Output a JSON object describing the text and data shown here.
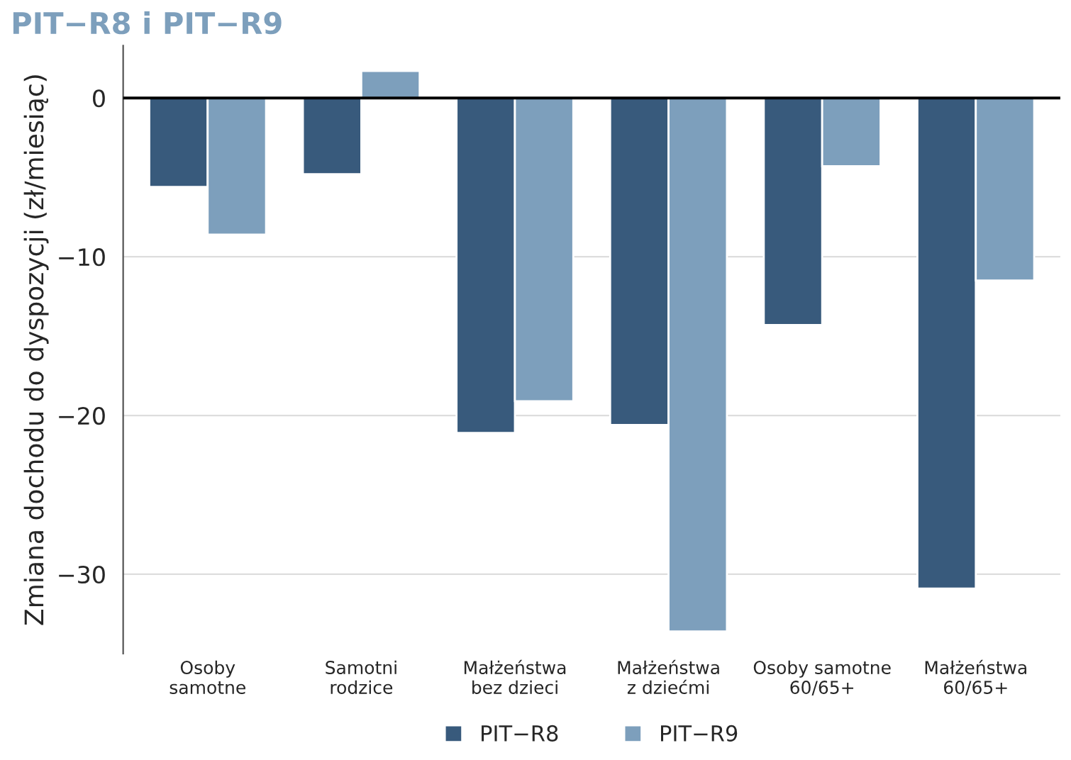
{
  "chart_data": {
    "type": "bar",
    "title": "PIT−R8 i PIT−R9",
    "ylabel": "Zmiana dochodu do dyspozycji (zł/miesiąc)",
    "categories": [
      "Osoby\nsamotne",
      "Samotni\nrodzice",
      "Małżeństwa\nbez dzieci",
      "Małżeństwa\nz dziećmi",
      "Osoby samotne\n60/65+",
      "Małżeństwa\n60/65+"
    ],
    "series": [
      {
        "name": "PIT−R8",
        "color": "#385a7c",
        "values": [
          -5.6,
          -4.8,
          -21.1,
          -20.6,
          -14.3,
          -30.9
        ]
      },
      {
        "name": "PIT−R9",
        "color": "#7d9fbc",
        "values": [
          -8.6,
          1.7,
          -19.1,
          -33.6,
          -4.3,
          -11.5
        ]
      }
    ],
    "ylim": [
      -35,
      3.3
    ],
    "yticks": [
      {
        "value": -30,
        "label": "−30"
      },
      {
        "value": -20,
        "label": "−20"
      },
      {
        "value": -10,
        "label": "−10"
      },
      0
    ],
    "ref_lines": [
      {
        "axis": "y",
        "value": 0,
        "color": "#000000"
      }
    ],
    "grid": "y",
    "legend": "bottom"
  }
}
